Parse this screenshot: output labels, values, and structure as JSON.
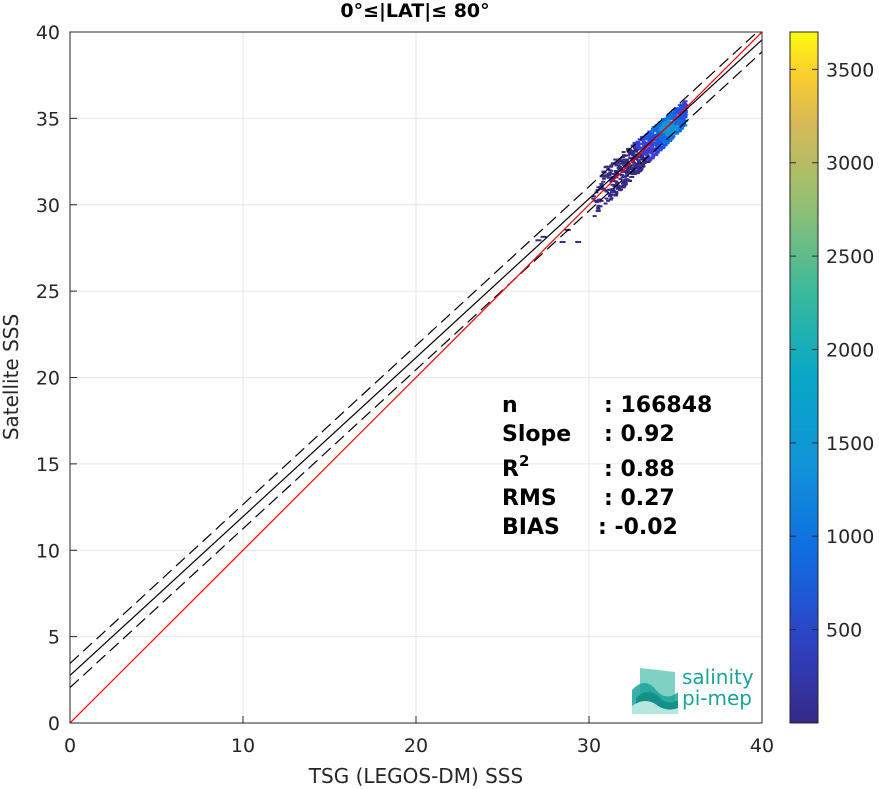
{
  "chart_data": {
    "type": "heatmap",
    "title": "0°≤|LAT|≤ 80°",
    "xlabel": "TSG (LEGOS-DM) SSS",
    "ylabel": "Satellite SSS",
    "xlim": [
      0,
      40
    ],
    "ylim": [
      0,
      40
    ],
    "xticks": [
      "0",
      "10",
      "20",
      "30",
      "40"
    ],
    "yticks": [
      "0",
      "5",
      "10",
      "15",
      "20",
      "25",
      "30",
      "35",
      "40"
    ],
    "grid": true,
    "colorbar": {
      "range": [
        0,
        3700
      ],
      "ticks": [
        "500",
        "1000",
        "1500",
        "2000",
        "2500",
        "3000",
        "3500"
      ],
      "colormap": "parula"
    },
    "lines": {
      "identity": {
        "color": "#ff0000",
        "slope": 1,
        "intercept": 0
      },
      "fit": {
        "color": "#000000",
        "slope": 0.92,
        "intercept": 2.75
      },
      "fit_upper": {
        "color": "#000000",
        "style": "dashed",
        "slope": 0.92,
        "intercept": 3.45
      },
      "fit_lower": {
        "color": "#000000",
        "style": "dashed",
        "slope": 0.92,
        "intercept": 2.05
      }
    },
    "density_core": {
      "x": [
        30,
        35.5
      ],
      "y": [
        30,
        35.4
      ],
      "peak": [
        34.5,
        34.5
      ]
    },
    "stats": [
      {
        "label": "n",
        "value": ": 166848",
        "sup": ""
      },
      {
        "label": "Slope",
        "value": ": 0.92",
        "sup": ""
      },
      {
        "label": "R",
        "value": ": 0.88",
        "sup": "2"
      },
      {
        "label": "RMS",
        "value": ": 0.27",
        "sup": ""
      },
      {
        "label": "BIAS",
        "value": ": -0.02",
        "sup": ""
      }
    ]
  },
  "logo": {
    "line1": "salinity",
    "line2": "pi-mep"
  }
}
